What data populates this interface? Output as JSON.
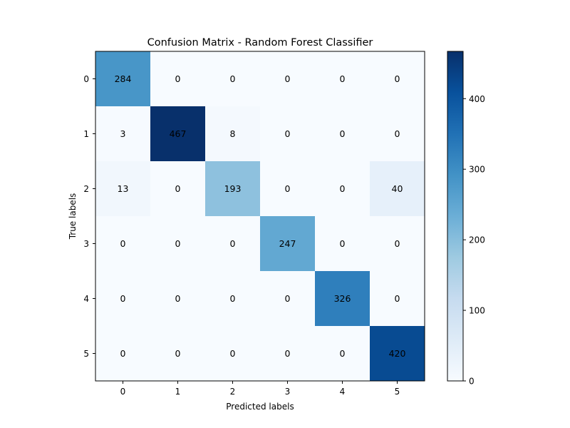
{
  "chart_data": {
    "type": "heatmap",
    "title": "Confusion Matrix - Random Forest Classifier",
    "xlabel": "Predicted labels",
    "ylabel": "True labels",
    "x_ticks": [
      "0",
      "1",
      "2",
      "3",
      "4",
      "5"
    ],
    "y_ticks": [
      "0",
      "1",
      "2",
      "3",
      "4",
      "5"
    ],
    "matrix": [
      [
        284,
        0,
        0,
        0,
        0,
        0
      ],
      [
        3,
        467,
        8,
        0,
        0,
        0
      ],
      [
        13,
        0,
        193,
        0,
        0,
        40
      ],
      [
        0,
        0,
        0,
        247,
        0,
        0
      ],
      [
        0,
        0,
        0,
        0,
        326,
        0
      ],
      [
        0,
        0,
        0,
        0,
        0,
        420
      ]
    ],
    "colormap": "Blues",
    "color_range": [
      0,
      467
    ],
    "colorbar_ticks": [
      0,
      100,
      200,
      300,
      400
    ],
    "colorbar_tick_labels": [
      "0",
      "100",
      "200",
      "300",
      "400"
    ]
  }
}
